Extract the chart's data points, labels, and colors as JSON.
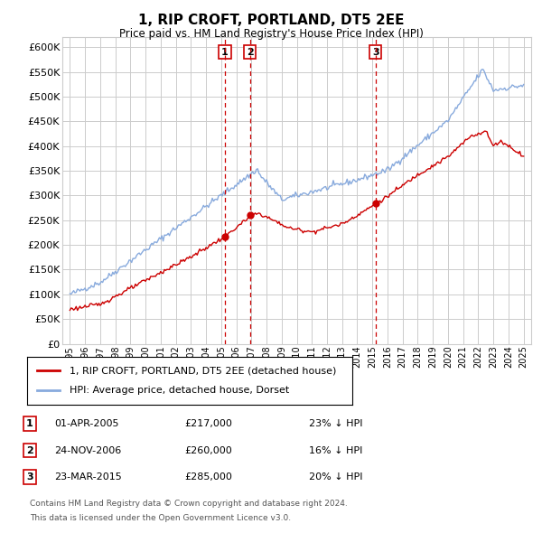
{
  "title": "1, RIP CROFT, PORTLAND, DT5 2EE",
  "subtitle": "Price paid vs. HM Land Registry's House Price Index (HPI)",
  "legend_property": "1, RIP CROFT, PORTLAND, DT5 2EE (detached house)",
  "legend_hpi": "HPI: Average price, detached house, Dorset",
  "footer1": "Contains HM Land Registry data © Crown copyright and database right 2024.",
  "footer2": "This data is licensed under the Open Government Licence v3.0.",
  "transactions": [
    {
      "num": 1,
      "date": "01-APR-2005",
      "price": "£217,000",
      "pct": "23% ↓ HPI",
      "year": 2005.25
    },
    {
      "num": 2,
      "date": "24-NOV-2006",
      "price": "£260,000",
      "pct": "16% ↓ HPI",
      "year": 2006.9
    },
    {
      "num": 3,
      "date": "23-MAR-2015",
      "price": "£285,000",
      "pct": "20% ↓ HPI",
      "year": 2015.22
    }
  ],
  "ylim": [
    0,
    620000
  ],
  "yticks": [
    0,
    50000,
    100000,
    150000,
    200000,
    250000,
    300000,
    350000,
    400000,
    450000,
    500000,
    550000,
    600000
  ],
  "xlim_start": 1994.5,
  "xlim_end": 2025.5,
  "property_color": "#cc0000",
  "hpi_color": "#88aadd",
  "vline_color": "#cc0000",
  "background_color": "#ffffff",
  "grid_color": "#cccccc",
  "dot_color": "#cc0000"
}
